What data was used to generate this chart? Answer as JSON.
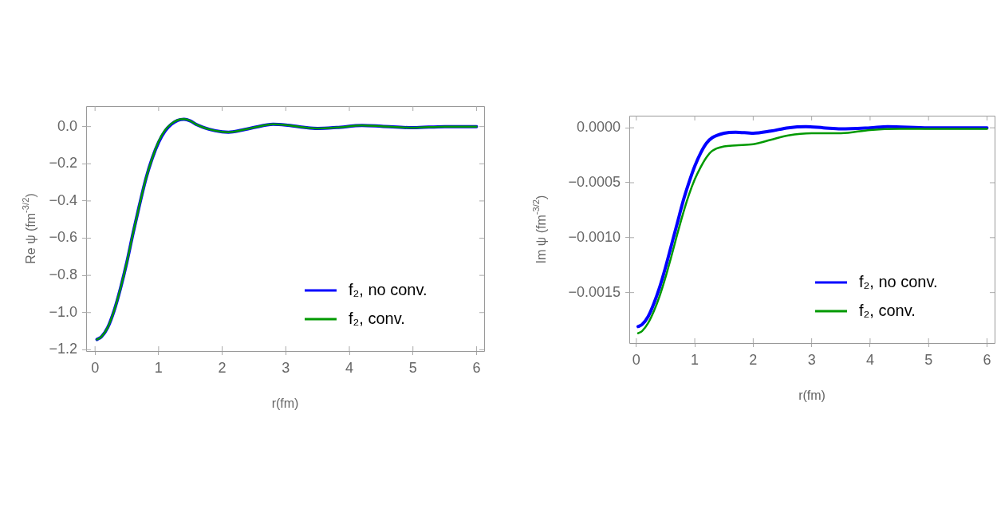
{
  "chart_data": [
    {
      "type": "line",
      "xlabel": "r(fm)",
      "ylabel": "Re ψ (fm$^{-3/2}$)",
      "xlim": [
        -0.14,
        6.12
      ],
      "ylim": [
        -1.207,
        0.11
      ],
      "xticks": [
        0,
        1,
        2,
        3,
        4,
        5,
        6
      ],
      "yticks": [
        {
          "value": -1.2,
          "label": "−1.2"
        },
        {
          "value": -1.0,
          "label": "−1.0"
        },
        {
          "value": -0.8,
          "label": "−0.8"
        },
        {
          "value": -0.6,
          "label": "−0.6"
        },
        {
          "value": -0.4,
          "label": "−0.4"
        },
        {
          "value": -0.2,
          "label": "−0.2"
        },
        {
          "value": 0,
          "label": "0.0"
        }
      ],
      "grid": false,
      "legend": "bottom right",
      "marker": "none",
      "line_style": "solid",
      "x": [
        0.03,
        0.1,
        0.2,
        0.3,
        0.4,
        0.5,
        0.6,
        0.7,
        0.8,
        0.9,
        1.0,
        1.1,
        1.2,
        1.3,
        1.4,
        1.5,
        1.6,
        1.8,
        2.0,
        2.1,
        2.3,
        2.5,
        2.8,
        3.0,
        3.3,
        3.5,
        3.8,
        4.2,
        4.5,
        5.0,
        5.5,
        6.0
      ],
      "series": [
        {
          "name": "f₂, no conv.",
          "color": "#0000ff",
          "values": [
            -1.145,
            -1.13,
            -1.08,
            -0.99,
            -0.87,
            -0.73,
            -0.57,
            -0.42,
            -0.28,
            -0.17,
            -0.085,
            -0.025,
            0.012,
            0.033,
            0.039,
            0.03,
            0.01,
            -0.015,
            -0.028,
            -0.03,
            -0.02,
            -0.005,
            0.012,
            0.008,
            -0.005,
            -0.01,
            -0.005,
            0.006,
            0.002,
            -0.006,
            0.0,
            0.0
          ]
        },
        {
          "name": "f₂, conv.",
          "color": "#009900",
          "values": [
            -1.145,
            -1.13,
            -1.08,
            -0.99,
            -0.87,
            -0.73,
            -0.57,
            -0.42,
            -0.28,
            -0.17,
            -0.08,
            -0.02,
            0.015,
            0.035,
            0.04,
            0.03,
            0.01,
            -0.015,
            -0.028,
            -0.03,
            -0.02,
            -0.005,
            0.012,
            0.008,
            -0.005,
            -0.01,
            -0.005,
            0.006,
            0.002,
            -0.006,
            0.0,
            0.0
          ]
        }
      ]
    },
    {
      "type": "line",
      "xlabel": "r(fm)",
      "ylabel": "Im ψ (fm$^{-3/2}$)",
      "xlim": [
        -0.12,
        6.13
      ],
      "ylim": [
        -0.00196,
        0.00011
      ],
      "xticks": [
        0,
        1,
        2,
        3,
        4,
        5,
        6
      ],
      "yticks": [
        {
          "value": -0.0015,
          "label": "−0.0015"
        },
        {
          "value": -0.001,
          "label": "−0.0010"
        },
        {
          "value": -0.0005,
          "label": "−0.0005"
        },
        {
          "value": 0,
          "label": "0.0000"
        }
      ],
      "grid": false,
      "legend": "bottom right",
      "marker": "none",
      "line_style": "solid",
      "series": [
        {
          "name": "f₂, no conv.",
          "color": "#0000ff",
          "x": [
            0.03,
            0.1,
            0.2,
            0.3,
            0.4,
            0.5,
            0.6,
            0.7,
            0.8,
            0.9,
            1.0,
            1.1,
            1.2,
            1.3,
            1.5,
            1.7,
            2.0,
            2.3,
            2.6,
            2.9,
            3.2,
            3.5,
            4.0,
            4.3,
            5.0,
            6.0
          ],
          "values": [
            -0.00181,
            -0.00179,
            -0.00172,
            -0.0016,
            -0.00145,
            -0.00127,
            -0.00107,
            -0.00087,
            -0.00067,
            -0.0005,
            -0.00035,
            -0.00023,
            -0.00014,
            -9e-05,
            -5e-05,
            -4e-05,
            -5e-05,
            -3e-05,
            0.0,
            1e-05,
            0.0,
            -1e-05,
            0.0,
            1e-05,
            0.0,
            0.0
          ]
        },
        {
          "name": "f₂, conv.",
          "color": "#009900",
          "x": [
            0.03,
            0.1,
            0.2,
            0.3,
            0.4,
            0.5,
            0.6,
            0.7,
            0.8,
            0.9,
            1.0,
            1.1,
            1.2,
            1.3,
            1.5,
            1.7,
            2.0,
            2.3,
            2.6,
            3.0,
            3.5,
            4.0,
            4.5,
            5.0,
            6.0
          ],
          "values": [
            -0.00187,
            -0.00185,
            -0.00178,
            -0.00167,
            -0.00153,
            -0.00136,
            -0.00117,
            -0.00097,
            -0.00078,
            -0.00061,
            -0.00047,
            -0.00036,
            -0.00027,
            -0.00021,
            -0.00017,
            -0.00016,
            -0.00015,
            -0.00011,
            -7e-05,
            -5e-05,
            -5e-05,
            -2e-05,
            -1e-05,
            -1e-05,
            -1e-05
          ]
        }
      ]
    }
  ]
}
